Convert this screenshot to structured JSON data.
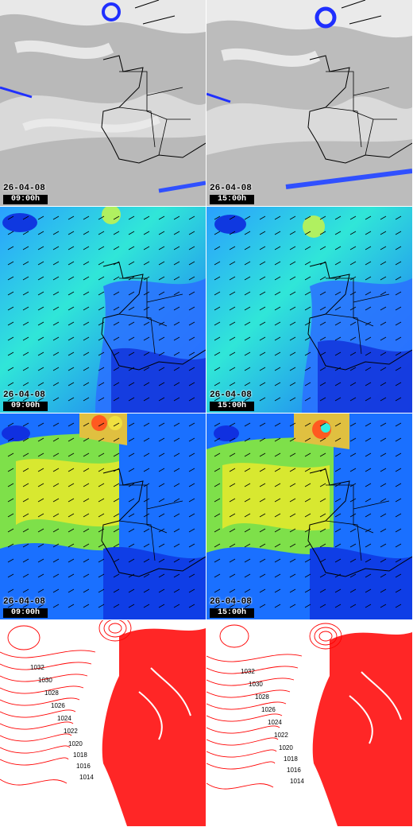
{
  "panels": [
    {
      "row": "satellite",
      "date": "26-04-08",
      "time": "09:00h"
    },
    {
      "row": "satellite",
      "date": "26-04-08",
      "time": "15:00h"
    },
    {
      "row": "wind-low",
      "date": "26-04-08",
      "time": "09:00h"
    },
    {
      "row": "wind-low",
      "date": "26-04-08",
      "time": "15:00h"
    },
    {
      "row": "wind-high",
      "date": "26-04-08",
      "time": "09:00h"
    },
    {
      "row": "wind-high",
      "date": "26-04-08",
      "time": "15:00h"
    },
    {
      "row": "pressure",
      "date": "",
      "time": ""
    },
    {
      "row": "pressure",
      "date": "",
      "time": ""
    }
  ],
  "isobars": {
    "left": [
      "1032",
      "1030",
      "1028",
      "1026",
      "1024",
      "1022",
      "1020",
      "1018",
      "1016",
      "1014"
    ],
    "right": [
      "1032",
      "1030",
      "1028",
      "1026",
      "1024",
      "1022",
      "1020",
      "1018",
      "1016",
      "1014"
    ]
  },
  "colors": {
    "sat_bg": "#b8b8b8",
    "wind_base": "#3aa0ff",
    "isobar": "#ff0000",
    "coast": "#000000"
  }
}
